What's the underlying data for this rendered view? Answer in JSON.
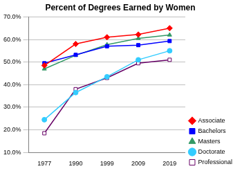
{
  "chart_data": {
    "type": "line",
    "title": "Percent of Degrees Earned by Women",
    "categories": [
      "1977",
      "1990",
      "1999",
      "2009",
      "2019"
    ],
    "series": [
      {
        "name": "Associate",
        "color": "#ff0000",
        "marker": "diamond",
        "values": [
          48.5,
          58,
          61,
          62.2,
          65
        ]
      },
      {
        "name": "Bachelors",
        "color": "#0000ff",
        "marker": "square",
        "values": [
          49.5,
          53.2,
          57,
          57.5,
          59.3
        ]
      },
      {
        "name": "Masters",
        "color": "#339966",
        "marker": "triangle",
        "values": [
          47,
          53,
          57.7,
          60.5,
          62
        ]
      },
      {
        "name": "Doctorate",
        "color": "#33ccff",
        "marker": "circle",
        "values": [
          24.5,
          36.5,
          43.5,
          51,
          55
        ]
      },
      {
        "name": "Professional",
        "color": "#660066",
        "marker": "open_square",
        "values": [
          18.5,
          38,
          43,
          49.5,
          51
        ]
      }
    ],
    "ylim": [
      10,
      70
    ],
    "yticks": [
      {
        "value": 10,
        "label": "10.0%"
      },
      {
        "value": 20,
        "label": "20.0%"
      },
      {
        "value": 30,
        "label": "30.0%"
      },
      {
        "value": 40,
        "label": "40.0%"
      },
      {
        "value": 50,
        "label": "50.0%"
      },
      {
        "value": 60,
        "label": "60.0%"
      },
      {
        "value": 70,
        "label": "70.0%"
      }
    ],
    "grid": true,
    "legend": "right"
  }
}
